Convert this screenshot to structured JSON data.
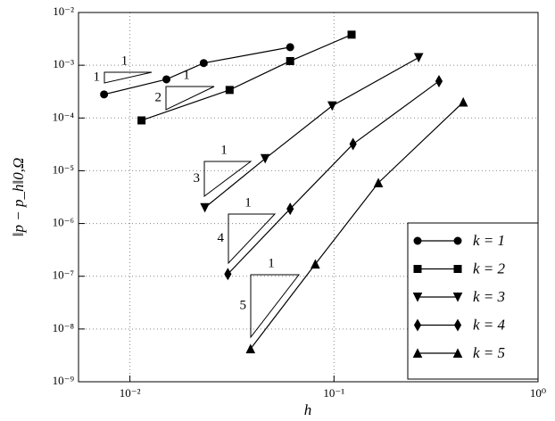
{
  "chart_data": {
    "type": "line",
    "x_label": "h",
    "y_label": "‖p − p_h‖0,Ω",
    "x_scale": "log",
    "y_scale": "log",
    "xlim": [
      0.0056,
      1
    ],
    "ylim": [
      1e-09,
      0.01
    ],
    "xticks": [
      {
        "value": 0.01,
        "label": "10⁻²"
      },
      {
        "value": 0.1,
        "label": "10⁻¹"
      },
      {
        "value": 1,
        "label": "10⁰"
      }
    ],
    "yticks": [
      {
        "value": 1e-09,
        "label": "10⁻⁹"
      },
      {
        "value": 1e-08,
        "label": "10⁻⁸"
      },
      {
        "value": 1e-07,
        "label": "10⁻⁷"
      },
      {
        "value": 1e-06,
        "label": "10⁻⁶"
      },
      {
        "value": 1e-05,
        "label": "10⁻⁵"
      },
      {
        "value": 0.0001,
        "label": "10⁻⁴"
      },
      {
        "value": 0.001,
        "label": "10⁻³"
      },
      {
        "value": 0.01,
        "label": "10⁻²"
      }
    ],
    "grid": true,
    "legend_position": "lower right",
    "series": [
      {
        "name": "k = 1",
        "color": "#000000",
        "marker": "circle",
        "x": [
          0.00747,
          0.0151,
          0.023,
          0.061
        ],
        "values": [
          0.00028,
          0.00054,
          0.0011,
          0.0022
        ]
      },
      {
        "name": "k = 2",
        "color": "#000000",
        "marker": "square",
        "x": [
          0.0114,
          0.0308,
          0.061,
          0.122
        ],
        "values": [
          9e-05,
          0.00034,
          0.0012,
          0.0038
        ]
      },
      {
        "name": "k = 3",
        "color": "#000000",
        "marker": "triangle-down",
        "x": [
          0.0233,
          0.046,
          0.098,
          0.26
        ],
        "values": [
          2e-06,
          1.7e-05,
          0.00017,
          0.0014
        ]
      },
      {
        "name": "k = 4",
        "color": "#000000",
        "marker": "diamond",
        "x": [
          0.0302,
          0.061,
          0.124,
          0.327
        ],
        "values": [
          1.1e-07,
          1.9e-06,
          3.2e-05,
          0.0005
        ]
      },
      {
        "name": "k = 5",
        "color": "#000000",
        "marker": "triangle-up",
        "x": [
          0.039,
          0.081,
          0.165,
          0.43
        ],
        "values": [
          4.2e-09,
          1.7e-07,
          5.9e-06,
          0.0002
        ]
      }
    ],
    "slope_triangles": [
      {
        "run_label": "1",
        "rise_label": "1"
      },
      {
        "run_label": "1",
        "rise_label": "2"
      },
      {
        "run_label": "1",
        "rise_label": "3"
      },
      {
        "run_label": "1",
        "rise_label": "4"
      },
      {
        "run_label": "1",
        "rise_label": "5"
      }
    ]
  }
}
